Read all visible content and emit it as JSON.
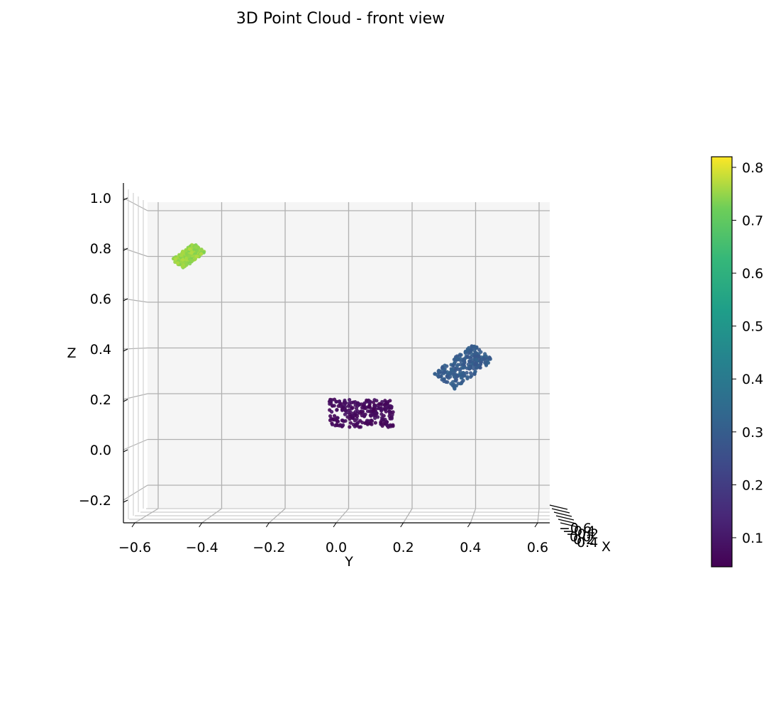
{
  "chart_data": {
    "type": "scatter",
    "title": "3D Point Cloud - front view",
    "xlabel": "Y",
    "ylabel": "Z",
    "zlabel": "X",
    "view": "front",
    "x_axis": {
      "label": "Y",
      "ticks": [
        "−0.6",
        "−0.4",
        "−0.2",
        "0.0",
        "0.2",
        "0.4",
        "0.6"
      ],
      "tick_values": [
        -0.6,
        -0.4,
        -0.2,
        0.0,
        0.2,
        0.4,
        0.6
      ],
      "lim": [
        -0.64,
        0.64
      ]
    },
    "y_axis": {
      "label": "Z",
      "ticks": [
        "−0.2",
        "0.0",
        "0.2",
        "0.4",
        "0.6",
        "0.8",
        "1.0"
      ],
      "tick_values": [
        -0.2,
        0.0,
        0.2,
        0.4,
        0.6,
        0.8,
        1.0
      ],
      "lim": [
        -0.32,
        1.05
      ]
    },
    "depth_axis": {
      "label": "X",
      "ticks": [
        "−0.6",
        "−0.4",
        "−0.2",
        "0.0",
        "0.2",
        "0.4"
      ]
    },
    "grid": true,
    "pane_color": "#f5f5f5",
    "colormap": "viridis",
    "colorbar": {
      "ticks": [
        "0.1",
        "0.2",
        "0.3",
        "0.4",
        "0.5",
        "0.6",
        "0.7",
        "0.8"
      ],
      "tick_values": [
        0.1,
        0.2,
        0.3,
        0.4,
        0.5,
        0.6,
        0.7,
        0.8
      ],
      "range": [
        0.045,
        0.82
      ]
    },
    "clusters": [
      {
        "name": "",
        "y_range": [
          -0.02,
          0.17
        ],
        "z_range": [
          0.09,
          0.2
        ],
        "color_value": 0.07,
        "shape": "box"
      },
      {
        "name": "",
        "y_range": [
          0.29,
          0.47
        ],
        "z_range": [
          0.24,
          0.42
        ],
        "color_value": 0.3,
        "shape": "slanted"
      },
      {
        "name": "",
        "y_range": [
          -0.49,
          -0.39
        ],
        "z_range": [
          0.72,
          0.82
        ],
        "color_value": 0.75,
        "shape": "slanted"
      }
    ]
  }
}
